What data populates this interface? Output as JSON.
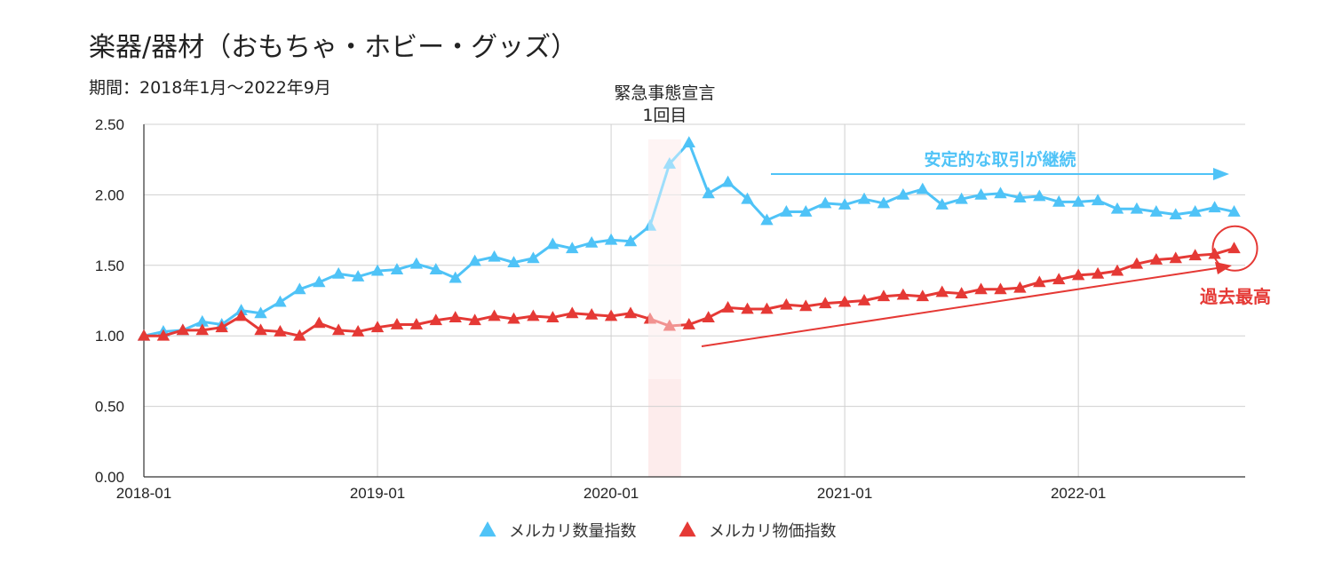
{
  "chart_data": {
    "type": "line",
    "title": "楽器/器材（おもちゃ・ホビー・グッズ）",
    "subtitle": "期間：2018年1月〜2022年9月",
    "xlabel": "",
    "ylabel": "",
    "x": [
      "2018-01",
      "2018-02",
      "2018-03",
      "2018-04",
      "2018-05",
      "2018-06",
      "2018-07",
      "2018-08",
      "2018-09",
      "2018-10",
      "2018-11",
      "2018-12",
      "2019-01",
      "2019-02",
      "2019-03",
      "2019-04",
      "2019-05",
      "2019-06",
      "2019-07",
      "2019-08",
      "2019-09",
      "2019-10",
      "2019-11",
      "2019-12",
      "2020-01",
      "2020-02",
      "2020-03",
      "2020-04",
      "2020-05",
      "2020-06",
      "2020-07",
      "2020-08",
      "2020-09",
      "2020-10",
      "2020-11",
      "2020-12",
      "2021-01",
      "2021-02",
      "2021-03",
      "2021-04",
      "2021-05",
      "2021-06",
      "2021-07",
      "2021-08",
      "2021-09",
      "2021-10",
      "2021-11",
      "2021-12",
      "2022-01",
      "2022-02",
      "2022-03",
      "2022-04",
      "2022-05",
      "2022-06",
      "2022-07",
      "2022-08",
      "2022-09"
    ],
    "x_ticks": [
      "2018-01",
      "2019-01",
      "2020-01",
      "2021-01",
      "2022-01"
    ],
    "y_ticks": [
      "0.00",
      "0.50",
      "1.00",
      "1.50",
      "2.00",
      "2.50"
    ],
    "ylim": [
      0,
      2.5
    ],
    "grid": true,
    "legend_position": "bottom",
    "series": [
      {
        "name": "メルカリ数量指数",
        "color": "#4FC3F7",
        "values": [
          1.0,
          1.03,
          1.04,
          1.1,
          1.08,
          1.18,
          1.16,
          1.24,
          1.33,
          1.38,
          1.44,
          1.42,
          1.46,
          1.47,
          1.51,
          1.47,
          1.41,
          1.53,
          1.56,
          1.52,
          1.55,
          1.65,
          1.62,
          1.66,
          1.68,
          1.67,
          1.78,
          2.22,
          2.37,
          2.01,
          2.09,
          1.97,
          1.82,
          1.88,
          1.88,
          1.94,
          1.93,
          1.97,
          1.94,
          2.0,
          2.04,
          1.93,
          1.97,
          2.0,
          2.01,
          1.98,
          1.99,
          1.95,
          1.95,
          1.96,
          1.9,
          1.9,
          1.88,
          1.86,
          1.88,
          1.91,
          1.88
        ]
      },
      {
        "name": "メルカリ物価指数",
        "color": "#E53935",
        "values": [
          1.0,
          1.0,
          1.04,
          1.04,
          1.06,
          1.14,
          1.04,
          1.03,
          1.0,
          1.09,
          1.04,
          1.03,
          1.06,
          1.08,
          1.08,
          1.11,
          1.13,
          1.11,
          1.14,
          1.12,
          1.14,
          1.13,
          1.16,
          1.15,
          1.14,
          1.16,
          1.12,
          1.07,
          1.08,
          1.13,
          1.2,
          1.19,
          1.19,
          1.22,
          1.21,
          1.23,
          1.24,
          1.25,
          1.28,
          1.29,
          1.28,
          1.31,
          1.3,
          1.33,
          1.33,
          1.34,
          1.38,
          1.4,
          1.43,
          1.44,
          1.46,
          1.51,
          1.54,
          1.55,
          1.57,
          1.58,
          1.62
        ]
      }
    ],
    "highlight_band": {
      "from": "2020-03",
      "to": "2020-04",
      "label": "緊急事態宣言\n1回目",
      "color": "#FDECEC"
    },
    "annotations": [
      {
        "id": "stable",
        "text": "安定的な取引が継続",
        "color": "#4FC3F7"
      },
      {
        "id": "record",
        "text": "過去最高",
        "color": "#E53935"
      }
    ]
  }
}
